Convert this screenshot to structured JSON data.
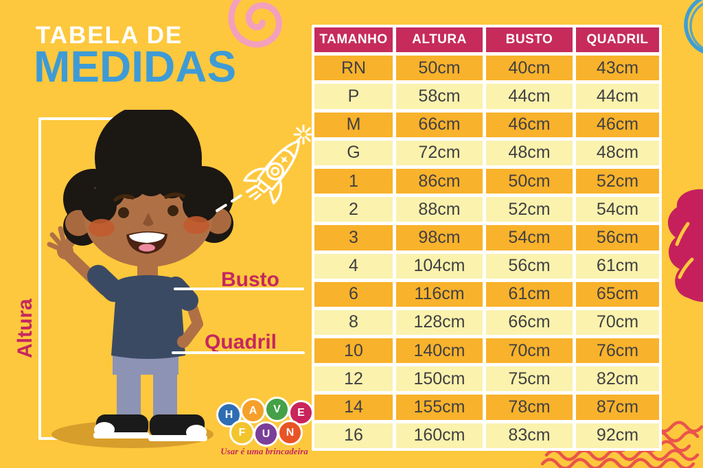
{
  "title": {
    "line1": "TABELA DE",
    "line2": "MEDIDAS"
  },
  "figure_labels": {
    "altura": "Altura",
    "busto": "Busto",
    "quadril": "Quadril"
  },
  "logo": {
    "balls": [
      {
        "ch": "H",
        "color": "#2E6DB4"
      },
      {
        "ch": "A",
        "color": "#F6A02B"
      },
      {
        "ch": "V",
        "color": "#44A147"
      },
      {
        "ch": "E",
        "color": "#C9245B"
      },
      {
        "ch": "F",
        "color": "#F3C52D"
      },
      {
        "ch": "U",
        "color": "#7A3F98"
      },
      {
        "ch": "N",
        "color": "#E85426"
      }
    ],
    "tagline": "Usar é uma brincadeira"
  },
  "chart_data": {
    "type": "table",
    "title": "Tabela de Medidas",
    "columns": [
      "TAMANHO",
      "ALTURA",
      "BUSTO",
      "QUADRIL"
    ],
    "rows": [
      [
        "RN",
        "50cm",
        "40cm",
        "43cm"
      ],
      [
        "P",
        "58cm",
        "44cm",
        "44cm"
      ],
      [
        "M",
        "66cm",
        "46cm",
        "46cm"
      ],
      [
        "G",
        "72cm",
        "48cm",
        "48cm"
      ],
      [
        "1",
        "86cm",
        "50cm",
        "52cm"
      ],
      [
        "2",
        "88cm",
        "52cm",
        "54cm"
      ],
      [
        "3",
        "98cm",
        "54cm",
        "56cm"
      ],
      [
        "4",
        "104cm",
        "56cm",
        "61cm"
      ],
      [
        "6",
        "116cm",
        "61cm",
        "65cm"
      ],
      [
        "8",
        "128cm",
        "66cm",
        "70cm"
      ],
      [
        "10",
        "140cm",
        "70cm",
        "76cm"
      ],
      [
        "12",
        "150cm",
        "75cm",
        "82cm"
      ],
      [
        "14",
        "155cm",
        "78cm",
        "87cm"
      ],
      [
        "16",
        "160cm",
        "83cm",
        "92cm"
      ]
    ],
    "layout": {
      "alternating_rows": true,
      "first_data_row_shade": "dark",
      "grid_gap_color": "#FFFFFF"
    }
  },
  "style": {
    "background": "#FDC83D",
    "header_bg": "#C62B5C",
    "row_dark": "#F9B22B",
    "row_light": "#FAF2AD",
    "cell_text": "#414042",
    "title_line1_color": "#FFFFFF",
    "title_line2_color": "#3E9BD6",
    "label_color": "#C5275F"
  },
  "decor": {
    "spiral_pink": "#F2A0BC",
    "circle_doodle_blue": "#3D9FD3",
    "heart_magenta": "#C5205C",
    "wave_red": "#EA544B",
    "doodle_white": "#FFFFFF",
    "shadow": "#D89E2C",
    "skin": "#B07046",
    "hair": "#1B1713",
    "shirt": "#3B4A63",
    "jeans": "#8D93B4",
    "blush": "#C25B2E"
  }
}
